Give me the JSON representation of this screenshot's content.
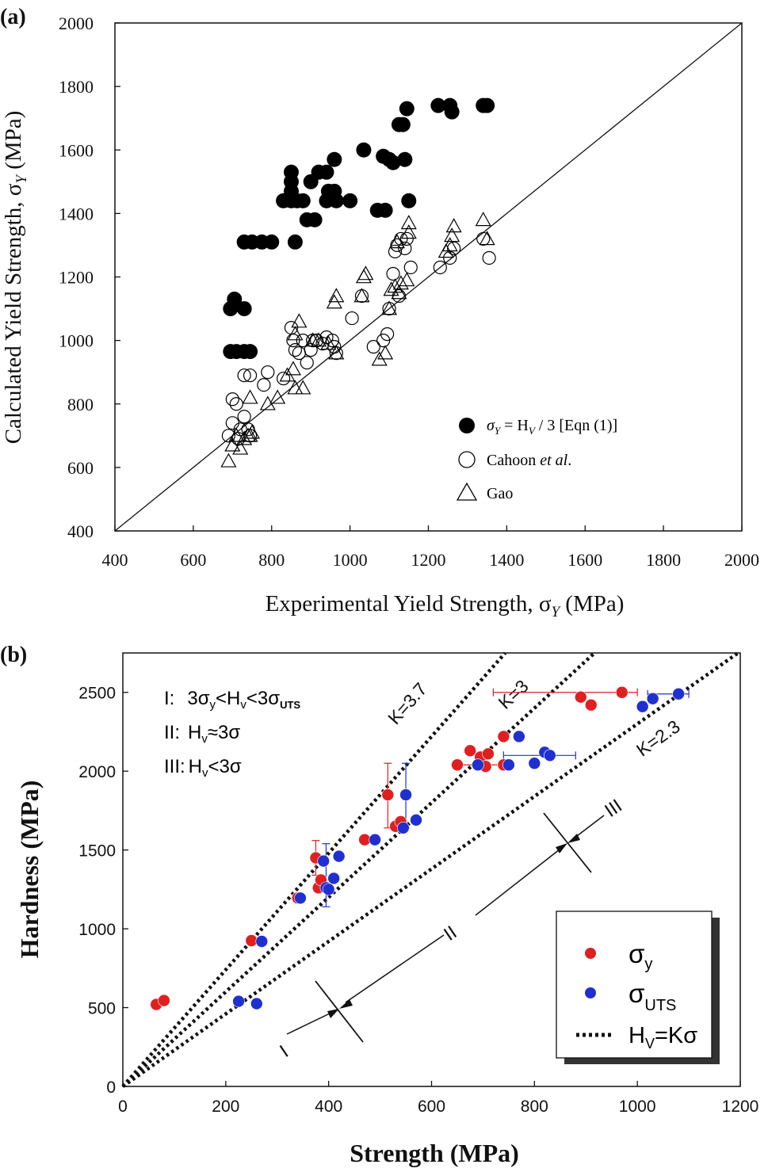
{
  "chart_data": [
    {
      "panel_label": "(a)",
      "type": "scatter",
      "title": "",
      "xlabel": "Experimental Yield Strength, σ",
      "xlabel_sub": "Y",
      "xlabel_unit": " (MPa)",
      "ylabel": "Calculated Yield Strength, σ",
      "ylabel_sub": "Y",
      "ylabel_unit": " (MPa)",
      "xlim": [
        400,
        2000
      ],
      "ylim": [
        400,
        2000
      ],
      "xticks": [
        400,
        600,
        800,
        1000,
        1200,
        1400,
        1600,
        1800,
        2000
      ],
      "yticks": [
        400,
        600,
        800,
        1000,
        1200,
        1400,
        1600,
        1800,
        2000
      ],
      "grid": false,
      "legend_position": "bottom-right",
      "reference_line": {
        "from": [
          400,
          400
        ],
        "to": [
          2000,
          2000
        ]
      },
      "series": [
        {
          "name": "σY = HV / 3 [Eqn (1)]",
          "legend_parts": {
            "sigma": "σ",
            "sub": "Y",
            "eq": " = H",
            "hsub": "V",
            "rest": " / 3 [Eqn (1)]"
          },
          "marker": "filled-circle",
          "color": "#000000",
          "points": [
            [
              695,
              1100
            ],
            [
              705,
              1130
            ],
            [
              730,
              1100
            ],
            [
              695,
              965
            ],
            [
              710,
              965
            ],
            [
              730,
              965
            ],
            [
              745,
              965
            ],
            [
              730,
              1310
            ],
            [
              750,
              1310
            ],
            [
              775,
              1310
            ],
            [
              800,
              1310
            ],
            [
              860,
              1310
            ],
            [
              830,
              1440
            ],
            [
              850,
              1440
            ],
            [
              865,
              1440
            ],
            [
              850,
              1470
            ],
            [
              850,
              1500
            ],
            [
              850,
              1530
            ],
            [
              880,
              1440
            ],
            [
              900,
              1500
            ],
            [
              890,
              1380
            ],
            [
              910,
              1380
            ],
            [
              920,
              1530
            ],
            [
              940,
              1530
            ],
            [
              940,
              1440
            ],
            [
              945,
              1470
            ],
            [
              960,
              1470
            ],
            [
              965,
              1440
            ],
            [
              960,
              1570
            ],
            [
              1000,
              1440
            ],
            [
              1035,
              1600
            ],
            [
              1070,
              1410
            ],
            [
              1090,
              1410
            ],
            [
              1085,
              1580
            ],
            [
              1100,
              1570
            ],
            [
              1110,
              1560
            ],
            [
              1140,
              1570
            ],
            [
              1125,
              1680
            ],
            [
              1135,
              1680
            ],
            [
              1145,
              1730
            ],
            [
              1150,
              1440
            ],
            [
              1225,
              1740
            ],
            [
              1255,
              1740
            ],
            [
              1260,
              1720
            ],
            [
              1340,
              1740
            ],
            [
              1350,
              1740
            ]
          ]
        },
        {
          "name": "Cahoon et al.",
          "legend_parts": {
            "a": "Cahoon ",
            "it": "et al",
            "b": "."
          },
          "marker": "open-circle",
          "color": "#000000",
          "points": [
            [
              690,
              700
            ],
            [
              700,
              740
            ],
            [
              700,
              815
            ],
            [
              710,
              800
            ],
            [
              715,
              690
            ],
            [
              720,
              720
            ],
            [
              730,
              760
            ],
            [
              740,
              720
            ],
            [
              745,
              700
            ],
            [
              730,
              890
            ],
            [
              745,
              890
            ],
            [
              780,
              860
            ],
            [
              790,
              900
            ],
            [
              830,
              880
            ],
            [
              850,
              1040
            ],
            [
              855,
              1000
            ],
            [
              860,
              970
            ],
            [
              870,
              960
            ],
            [
              880,
              1000
            ],
            [
              890,
              930
            ],
            [
              900,
              970
            ],
            [
              905,
              1000
            ],
            [
              915,
              1000
            ],
            [
              930,
              990
            ],
            [
              940,
              1010
            ],
            [
              955,
              1000
            ],
            [
              960,
              980
            ],
            [
              965,
              960
            ],
            [
              1005,
              1070
            ],
            [
              1030,
              1140
            ],
            [
              1060,
              980
            ],
            [
              1085,
              1000
            ],
            [
              1095,
              1020
            ],
            [
              1100,
              1100
            ],
            [
              1110,
              1210
            ],
            [
              1115,
              1280
            ],
            [
              1120,
              1300
            ],
            [
              1130,
              1320
            ],
            [
              1140,
              1290
            ],
            [
              1145,
              1320
            ],
            [
              1155,
              1230
            ],
            [
              1125,
              1140
            ],
            [
              1230,
              1230
            ],
            [
              1255,
              1260
            ],
            [
              1265,
              1290
            ],
            [
              1340,
              1320
            ],
            [
              1355,
              1260
            ]
          ]
        },
        {
          "name": "Gao",
          "marker": "open-triangle",
          "color": "#000000",
          "points": [
            [
              690,
              620
            ],
            [
              700,
              670
            ],
            [
              710,
              700
            ],
            [
              720,
              660
            ],
            [
              730,
              690
            ],
            [
              740,
              700
            ],
            [
              745,
              700
            ],
            [
              750,
              710
            ],
            [
              745,
              820
            ],
            [
              790,
              800
            ],
            [
              815,
              820
            ],
            [
              840,
              890
            ],
            [
              855,
              910
            ],
            [
              860,
              1020
            ],
            [
              870,
              1060
            ],
            [
              860,
              850
            ],
            [
              880,
              850
            ],
            [
              905,
              1000
            ],
            [
              920,
              1000
            ],
            [
              945,
              990
            ],
            [
              965,
              960
            ],
            [
              960,
              1120
            ],
            [
              965,
              1140
            ],
            [
              1030,
              1140
            ],
            [
              1035,
              1200
            ],
            [
              1040,
              1210
            ],
            [
              1075,
              940
            ],
            [
              1090,
              960
            ],
            [
              1100,
              1100
            ],
            [
              1105,
              1160
            ],
            [
              1115,
              1170
            ],
            [
              1125,
              1150
            ],
            [
              1130,
              1180
            ],
            [
              1145,
              1190
            ],
            [
              1150,
              1340
            ],
            [
              1150,
              1370
            ],
            [
              1120,
              1310
            ],
            [
              1245,
              1280
            ],
            [
              1255,
              1300
            ],
            [
              1260,
              1330
            ],
            [
              1265,
              1360
            ],
            [
              1340,
              1380
            ],
            [
              1350,
              1320
            ]
          ]
        }
      ]
    },
    {
      "panel_label": "(b)",
      "type": "scatter",
      "title": "",
      "xlabel": "Strength (MPa)",
      "ylabel": "Hardness (MPa)",
      "xlim": [
        0,
        1200
      ],
      "ylim": [
        0,
        2750
      ],
      "xticks": [
        0,
        200,
        400,
        600,
        800,
        1000,
        1200
      ],
      "yticks": [
        0,
        500,
        1000,
        1500,
        2000,
        2500
      ],
      "grid": false,
      "legend_position": "bottom-right",
      "colors": {
        "sigma_y": "#e02020",
        "sigma_uts": "#2030d0"
      },
      "regions": [
        {
          "roman": "I:",
          "text_a": "3σ",
          "sub_a": "y",
          "text_b": "<H",
          "sub_b": "v",
          "text_c": "<3σ",
          "sub_c": "UTS"
        },
        {
          "roman": "II:",
          "text_a": "H",
          "sub_a": "v",
          "text_b": "≈3σ"
        },
        {
          "roman": "III:",
          "text_a": "H",
          "sub_a": "v",
          "text_b": "<3σ"
        }
      ],
      "lines": [
        {
          "label": "K=3.7",
          "K": 3.7
        },
        {
          "label": "K=3",
          "K": 3.0
        },
        {
          "label": "K=2.3",
          "K": 2.3
        }
      ],
      "region_labels": [
        "I",
        "II",
        "III"
      ],
      "series": [
        {
          "name": "σy",
          "legend_parts": {
            "sym": "σ",
            "sub": "y"
          },
          "color": "#e02020",
          "points": [
            [
              65,
              520
            ],
            [
              80,
              545
            ],
            [
              250,
              925
            ],
            [
              340,
              1195
            ],
            [
              375,
              1450
            ],
            [
              380,
              1260
            ],
            [
              385,
              1310
            ],
            [
              470,
              1565
            ],
            [
              515,
              1850
            ],
            [
              530,
              1650
            ],
            [
              540,
              1680
            ],
            [
              650,
              2040
            ],
            [
              675,
              2130
            ],
            [
              695,
              2090
            ],
            [
              705,
              2030
            ],
            [
              710,
              2110
            ],
            [
              740,
              2220
            ],
            [
              740,
              2040
            ],
            [
              890,
              2470
            ],
            [
              910,
              2420
            ],
            [
              970,
              2500
            ]
          ],
          "xerr": [
            [
              650,
              740
            ],
            [
              720,
              1000
            ]
          ],
          "yerr": [
            [
              375,
              1340,
              1560
            ],
            [
              515,
              1640,
              2050
            ]
          ]
        },
        {
          "name": "σUTS",
          "legend_parts": {
            "sym": "σ",
            "sub": "UTS"
          },
          "color": "#2030d0",
          "points": [
            [
              225,
              540
            ],
            [
              260,
              525
            ],
            [
              270,
              920
            ],
            [
              345,
              1195
            ],
            [
              390,
              1430
            ],
            [
              395,
              1260
            ],
            [
              400,
              1250
            ],
            [
              410,
              1320
            ],
            [
              420,
              1460
            ],
            [
              490,
              1565
            ],
            [
              545,
              1640
            ],
            [
              550,
              1850
            ],
            [
              570,
              1690
            ],
            [
              690,
              2040
            ],
            [
              750,
              2040
            ],
            [
              770,
              2220
            ],
            [
              800,
              2050
            ],
            [
              820,
              2120
            ],
            [
              830,
              2100
            ],
            [
              1010,
              2410
            ],
            [
              1030,
              2460
            ],
            [
              1080,
              2490
            ]
          ],
          "xerr": [
            [
              740,
              880
            ],
            [
              1020,
              1100
            ]
          ],
          "yerr": [
            [
              395,
              1140,
              1540
            ],
            [
              550,
              1640,
              2050
            ]
          ]
        }
      ],
      "legend_line_label": {
        "a": "H",
        "sub": "V",
        "b": "=Kσ"
      }
    }
  ]
}
